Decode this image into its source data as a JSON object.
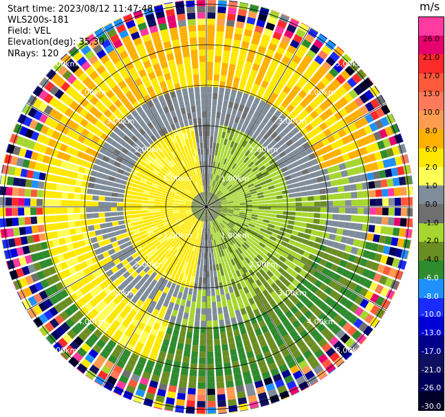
{
  "header": {
    "start_time": "Start time: 2023/08/12 11:47:48",
    "instrument": "WLS200s-181",
    "field": "Field: VEL",
    "elevation": "Elevation(deg): 35.30",
    "nrays": "NRays: 120"
  },
  "colorbar": {
    "unit": "m/s",
    "labels": [
      "26.0",
      "21.0",
      "17.0",
      "13.0",
      "10.0",
      "8.0",
      "6.0",
      "2.0",
      "1.0",
      "0.0",
      "-1.0",
      "-2.0",
      "-4.0",
      "-6.0",
      "-8.0",
      "-10.0",
      "-13.0",
      "-17.0",
      "-21.0",
      "-26.0",
      "-30.0"
    ],
    "colors": [
      "#ff3aa0",
      "#e8006e",
      "#ff2a2a",
      "#ff5a3c",
      "#ff7a5a",
      "#ff9c50",
      "#ffb000",
      "#ffe800",
      "#ffff55",
      "#7f8c99",
      "#6f6f6f",
      "#a6d62f",
      "#6b8e23",
      "#2e8b2e",
      "#1e90ff",
      "#1a2bff",
      "#0000d8",
      "#00008c",
      "#101060",
      "#00005a",
      "#000028"
    ]
  },
  "chart_data": {
    "type": "ppi_polar",
    "field": "VEL",
    "units": "m/s",
    "nrays": 120,
    "range_ring_labels": [
      "1.00km",
      "2.00km",
      "3.00km",
      "4.00km",
      "5.00km"
    ],
    "range_rings_km": [
      1,
      2,
      3,
      4,
      5
    ],
    "velocity_pattern": {
      "near_range_west": "1.0 to 2.0 m/s (yellow)",
      "near_range_east": "-1.0 to -2.0 m/s (light green)",
      "mid_range_north": "0.0 to -1.0 m/s (gray)",
      "mid_range_south": "-2.0 to -6.0 m/s (green)",
      "far_range": "noise, all values"
    }
  }
}
